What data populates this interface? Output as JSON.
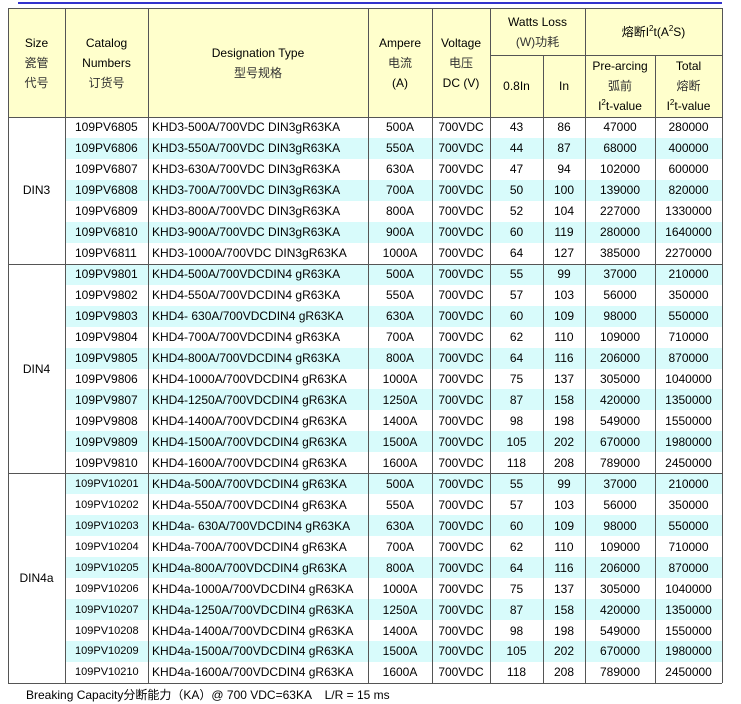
{
  "header": {
    "size": [
      "Size",
      "瓷管",
      "代号"
    ],
    "catalog": [
      "Catalog",
      "Numbers",
      "订货号"
    ],
    "designation": [
      "Designation Type",
      "型号规格"
    ],
    "ampere": [
      "Ampere",
      "电流",
      "(A)"
    ],
    "voltage": [
      "Voltage",
      "电压",
      "DC (V)"
    ],
    "watts_loss": [
      "Watts Loss",
      "(W)功耗"
    ],
    "watts_08in": [
      "0.8In"
    ],
    "watts_in": [
      "In"
    ],
    "fuse_i2t": [
      [
        "熔断I",
        "2",
        "t(A",
        "2",
        "S)"
      ]
    ],
    "pre_arcing": [
      "Pre-arcing",
      "弧前",
      [
        "I",
        "2",
        "t-value"
      ]
    ],
    "total": [
      "Total",
      "熔断",
      [
        "I",
        "2",
        "t-value"
      ]
    ]
  },
  "groups": [
    {
      "size": "DIN3",
      "rows": [
        [
          "109PV6805",
          "KHD3-500A/700VDC DIN3gR63KA",
          "500A",
          "700VDC",
          "43",
          "86",
          "47000",
          "280000"
        ],
        [
          "109PV6806",
          "KHD3-550A/700VDC DIN3gR63KA",
          "550A",
          "700VDC",
          "44",
          "87",
          "68000",
          "400000"
        ],
        [
          "109PV6807",
          "KHD3-630A/700VDC DIN3gR63KA",
          "630A",
          "700VDC",
          "47",
          "94",
          "102000",
          "600000"
        ],
        [
          "109PV6808",
          "KHD3-700A/700VDC DIN3gR63KA",
          "700A",
          "700VDC",
          "50",
          "100",
          "139000",
          "820000"
        ],
        [
          "109PV6809",
          "KHD3-800A/700VDC DIN3gR63KA",
          "800A",
          "700VDC",
          "52",
          "104",
          "227000",
          "1330000"
        ],
        [
          "109PV6810",
          "KHD3-900A/700VDC DIN3gR63KA",
          "900A",
          "700VDC",
          "60",
          "119",
          "280000",
          "1640000"
        ],
        [
          "109PV6811",
          "KHD3-1000A/700VDC DIN3gR63KA",
          "1000A",
          "700VDC",
          "64",
          "127",
          "385000",
          "2270000"
        ]
      ]
    },
    {
      "size": "DIN4",
      "rows": [
        [
          "109PV9801",
          "KHD4-500A/700VDCDIN4 gR63KA",
          "500A",
          "700VDC",
          "55",
          "99",
          "37000",
          "210000"
        ],
        [
          "109PV9802",
          "KHD4-550A/700VDCDIN4 gR63KA",
          "550A",
          "700VDC",
          "57",
          "103",
          "56000",
          "350000"
        ],
        [
          "109PV9803",
          "KHD4- 630A/700VDCDIN4 gR63KA",
          "630A",
          "700VDC",
          "60",
          "109",
          "98000",
          "550000"
        ],
        [
          "109PV9804",
          "KHD4-700A/700VDCDIN4 gR63KA",
          "700A",
          "700VDC",
          "62",
          "110",
          "109000",
          "710000"
        ],
        [
          "109PV9805",
          "KHD4-800A/700VDCDIN4 gR63KA",
          "800A",
          "700VDC",
          "64",
          "116",
          "206000",
          "870000"
        ],
        [
          "109PV9806",
          "KHD4-1000A/700VDCDIN4 gR63KA",
          "1000A",
          "700VDC",
          "75",
          "137",
          "305000",
          "1040000"
        ],
        [
          "109PV9807",
          "KHD4-1250A/700VDCDIN4 gR63KA",
          "1250A",
          "700VDC",
          "87",
          "158",
          "420000",
          "1350000"
        ],
        [
          "109PV9808",
          "KHD4-1400A/700VDCDIN4 gR63KA",
          "1400A",
          "700VDC",
          "98",
          "198",
          "549000",
          "1550000"
        ],
        [
          "109PV9809",
          "KHD4-1500A/700VDCDIN4 gR63KA",
          "1500A",
          "700VDC",
          "105",
          "202",
          "670000",
          "1980000"
        ],
        [
          "109PV9810",
          "KHD4-1600A/700VDCDIN4 gR63KA",
          "1600A",
          "700VDC",
          "118",
          "208",
          "789000",
          "2450000"
        ]
      ]
    },
    {
      "size": "DIN4a",
      "rows": [
        [
          "109PV10201",
          "KHD4a-500A/700VDCDIN4 gR63KA",
          "500A",
          "700VDC",
          "55",
          "99",
          "37000",
          "210000"
        ],
        [
          "109PV10202",
          "KHD4a-550A/700VDCDIN4 gR63KA",
          "550A",
          "700VDC",
          "57",
          "103",
          "56000",
          "350000"
        ],
        [
          "109PV10203",
          "KHD4a- 630A/700VDCDIN4 gR63KA",
          "630A",
          "700VDC",
          "60",
          "109",
          "98000",
          "550000"
        ],
        [
          "109PV10204",
          "KHD4a-700A/700VDCDIN4 gR63KA",
          "700A",
          "700VDC",
          "62",
          "110",
          "109000",
          "710000"
        ],
        [
          "109PV10205",
          "KHD4a-800A/700VDCDIN4 gR63KA",
          "800A",
          "700VDC",
          "64",
          "116",
          "206000",
          "870000"
        ],
        [
          "109PV10206",
          "KHD4a-1000A/700VDCDIN4 gR63KA",
          "1000A",
          "700VDC",
          "75",
          "137",
          "305000",
          "1040000"
        ],
        [
          "109PV10207",
          "KHD4a-1250A/700VDCDIN4 gR63KA",
          "1250A",
          "700VDC",
          "87",
          "158",
          "420000",
          "1350000"
        ],
        [
          "109PV10208",
          "KHD4a-1400A/700VDCDIN4 gR63KA",
          "1400A",
          "700VDC",
          "98",
          "198",
          "549000",
          "1550000"
        ],
        [
          "109PV10209",
          "KHD4a-1500A/700VDCDIN4 gR63KA",
          "1500A",
          "700VDC",
          "105",
          "202",
          "670000",
          "1980000"
        ],
        [
          "109PV10210",
          "KHD4a-1600A/700VDCDIN4 gR63KA",
          "1600A",
          "700VDC",
          "118",
          "208",
          "789000",
          "2450000"
        ]
      ]
    }
  ],
  "footer": "Breaking Capacity分断能力（KA）@ 700 VDC=63KA    L/R = 15 ms"
}
